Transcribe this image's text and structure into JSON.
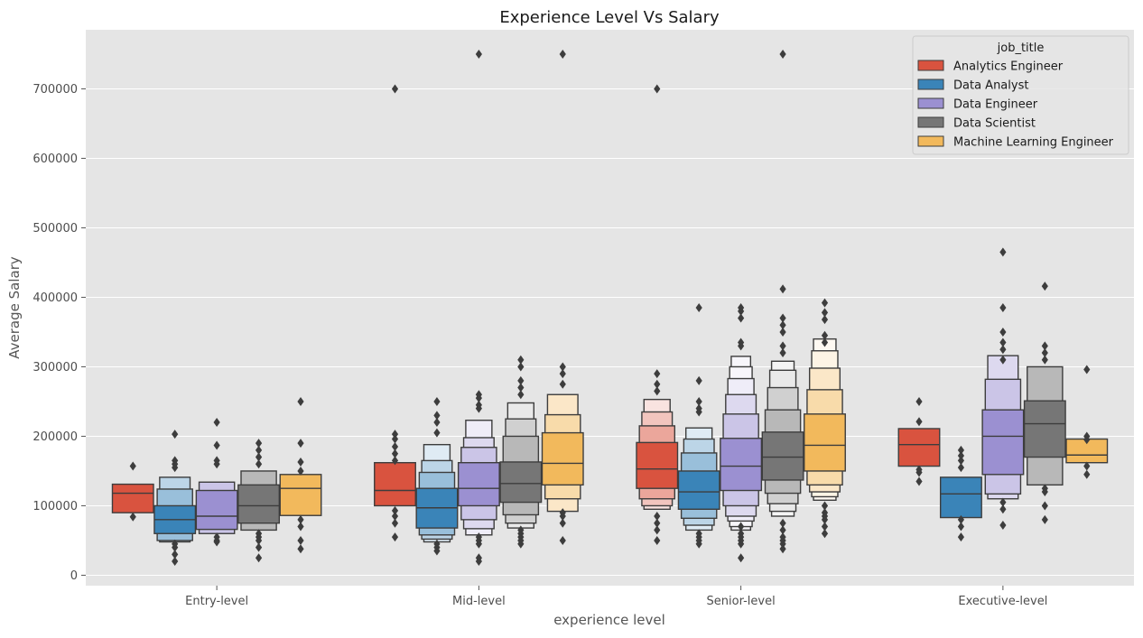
{
  "chart_data": {
    "type": "boxen",
    "title": "Experience Level Vs Salary",
    "xlabel": "experience level",
    "ylabel": "Average Salary",
    "ylim": [
      -15000,
      785000
    ],
    "yticks": [
      0,
      100000,
      200000,
      300000,
      400000,
      500000,
      600000,
      700000
    ],
    "ytick_labels": [
      "0",
      "100000",
      "200000",
      "300000",
      "400000",
      "500000",
      "600000",
      "700000"
    ],
    "grid": true,
    "legend": {
      "title": "job_title",
      "placement": "top-right"
    },
    "categories": [
      "Entry-level",
      "Mid-level",
      "Senior-level",
      "Executive-level"
    ],
    "series": [
      {
        "name": "Analytics Engineer",
        "color": "#d9533f",
        "groups": [
          {
            "boxes": [
              [
                90000,
                131000
              ]
            ],
            "median": 118000,
            "outliers": [
              157000,
              84000
            ]
          },
          {
            "boxes": [
              [
                100000,
                162000
              ]
            ],
            "median": 122000,
            "outliers": [
              700000,
              203000,
              196000,
              185000,
              175000,
              165000,
              93000,
              85000,
              75000,
              55000
            ]
          },
          {
            "boxes": [
              [
                125000,
                191000
              ],
              [
                110000,
                215000
              ],
              [
                100000,
                235000
              ],
              [
                95000,
                253000
              ]
            ],
            "median": 153000,
            "outliers": [
              700000,
              290000,
              275000,
              265000,
              85000,
              75000,
              65000,
              50000
            ]
          },
          {
            "boxes": [
              [
                157000,
                211000
              ]
            ],
            "median": 188000,
            "outliers": [
              250000,
              221000,
              152000,
              148000,
              135000
            ]
          }
        ]
      },
      {
        "name": "Data Analyst",
        "color": "#3a84b8",
        "groups": [
          {
            "boxes": [
              [
                60000,
                100000
              ],
              [
                50000,
                124000
              ],
              [
                48000,
                141000
              ]
            ],
            "median": 80000,
            "outliers": [
              203000,
              165000,
              160000,
              155000,
              45000,
              40000,
              30000,
              20000
            ]
          },
          {
            "boxes": [
              [
                68000,
                125000
              ],
              [
                58000,
                148000
              ],
              [
                52000,
                165000
              ],
              [
                48000,
                188000
              ]
            ],
            "median": 97000,
            "outliers": [
              250000,
              230000,
              220000,
              205000,
              45000,
              40000,
              35000
            ]
          },
          {
            "boxes": [
              [
                95000,
                150000
              ],
              [
                82000,
                176000
              ],
              [
                72000,
                196000
              ],
              [
                65000,
                212000
              ]
            ],
            "median": 120000,
            "outliers": [
              385000,
              280000,
              250000,
              240000,
              235000,
              60000,
              55000,
              50000,
              45000
            ]
          },
          {
            "boxes": [
              [
                83000,
                141000
              ]
            ],
            "median": 117000,
            "outliers": [
              180000,
              172000,
              165000,
              155000,
              80000,
              70000,
              55000
            ]
          }
        ]
      },
      {
        "name": "Data Engineer",
        "color": "#9b90d1",
        "groups": [
          {
            "boxes": [
              [
                66000,
                122000
              ],
              [
                60000,
                134000
              ]
            ],
            "median": 85000,
            "outliers": [
              220000,
              187000,
              165000,
              160000,
              55000,
              50000,
              48000
            ]
          },
          {
            "boxes": [
              [
                100000,
                162000
              ],
              [
                80000,
                184000
              ],
              [
                67000,
                198000
              ],
              [
                58000,
                223000
              ]
            ],
            "median": 125000,
            "outliers": [
              750000,
              260000,
              255000,
              245000,
              240000,
              55000,
              50000,
              45000,
              25000,
              20000
            ]
          },
          {
            "boxes": [
              [
                122000,
                197000
              ],
              [
                100000,
                232000
              ],
              [
                85000,
                260000
              ],
              [
                78000,
                283000
              ],
              [
                70000,
                300000
              ],
              [
                65000,
                315000
              ]
            ],
            "median": 157000,
            "outliers": [
              385000,
              380000,
              370000,
              335000,
              330000,
              70000,
              60000,
              55000,
              50000,
              45000,
              25000
            ]
          },
          {
            "boxes": [
              [
                145000,
                238000
              ],
              [
                117000,
                282000
              ],
              [
                110000,
                316000
              ]
            ],
            "median": 200000,
            "outliers": [
              465000,
              385000,
              350000,
              335000,
              325000,
              310000,
              105000,
              95000,
              72000
            ]
          }
        ]
      },
      {
        "name": "Data Scientist",
        "color": "#767676",
        "groups": [
          {
            "boxes": [
              [
                75000,
                130000
              ],
              [
                65000,
                150000
              ]
            ],
            "median": 100000,
            "outliers": [
              190000,
              180000,
              170000,
              160000,
              60000,
              55000,
              50000,
              40000,
              25000
            ]
          },
          {
            "boxes": [
              [
                105000,
                163000
              ],
              [
                87000,
                200000
              ],
              [
                75000,
                225000
              ],
              [
                68000,
                248000
              ]
            ],
            "median": 132000,
            "outliers": [
              310000,
              300000,
              280000,
              270000,
              260000,
              65000,
              60000,
              55000,
              50000,
              45000
            ]
          },
          {
            "boxes": [
              [
                137000,
                206000
              ],
              [
                118000,
                238000
              ],
              [
                103000,
                270000
              ],
              [
                92000,
                295000
              ],
              [
                85000,
                308000
              ]
            ],
            "median": 170000,
            "outliers": [
              750000,
              412000,
              370000,
              360000,
              350000,
              330000,
              320000,
              75000,
              65000,
              55000,
              50000,
              45000,
              38000
            ]
          },
          {
            "boxes": [
              [
                170000,
                251000
              ],
              [
                130000,
                300000
              ]
            ],
            "median": 218000,
            "outliers": [
              416000,
              330000,
              320000,
              310000,
              125000,
              120000,
              100000,
              80000
            ]
          }
        ]
      },
      {
        "name": "Machine Learning Engineer",
        "color": "#f2b95c",
        "groups": [
          {
            "boxes": [
              [
                86000,
                145000
              ]
            ],
            "median": 125000,
            "outliers": [
              250000,
              190000,
              163000,
              150000,
              80000,
              70000,
              50000,
              38000
            ]
          },
          {
            "boxes": [
              [
                130000,
                205000
              ],
              [
                110000,
                231000
              ],
              [
                92000,
                260000
              ]
            ],
            "median": 161000,
            "outliers": [
              750000,
              300000,
              290000,
              275000,
              90000,
              85000,
              75000,
              50000
            ]
          },
          {
            "boxes": [
              [
                150000,
                232000
              ],
              [
                130000,
                267000
              ],
              [
                120000,
                298000
              ],
              [
                113000,
                323000
              ],
              [
                108000,
                340000
              ]
            ],
            "median": 187000,
            "outliers": [
              392000,
              378000,
              368000,
              345000,
              335000,
              100000,
              90000,
              85000,
              80000,
              70000,
              60000
            ]
          },
          {
            "boxes": [
              [
                162000,
                196000
              ]
            ],
            "median": 173000,
            "outliers": [
              296000,
              200000,
              195000,
              157000,
              145000
            ]
          }
        ]
      }
    ]
  }
}
